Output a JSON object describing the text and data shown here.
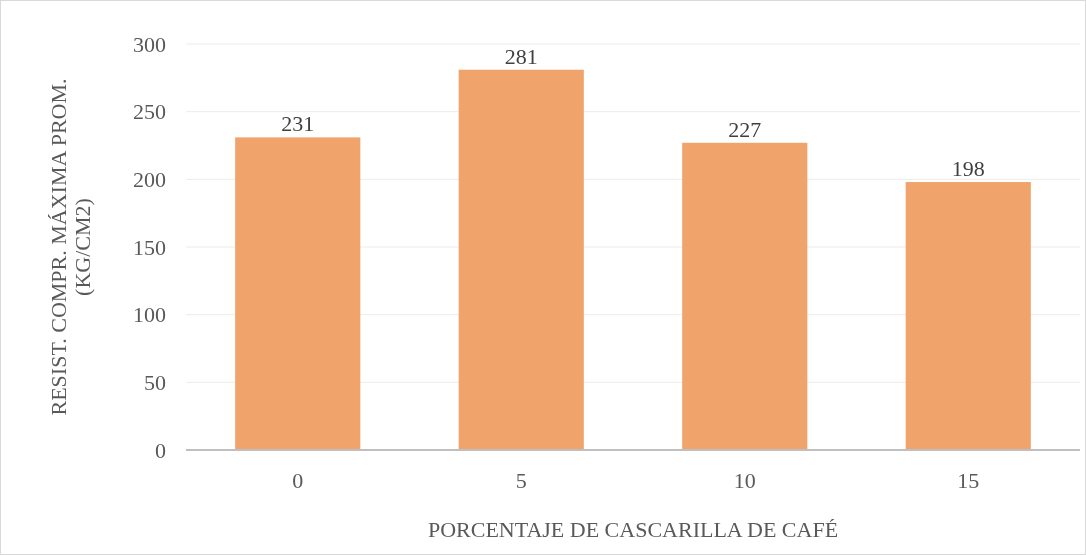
{
  "chart_data": {
    "type": "bar",
    "xlabel": "PORCENTAJE DE CASCARILLA DE CAFÉ",
    "ylabel": "RESIST. COMPR. MÁXIMA PROM. (KG/CM2)",
    "categories": [
      "0",
      "5",
      "10",
      "15"
    ],
    "values": [
      231,
      281,
      227,
      198
    ],
    "color": "#f0a46c",
    "ylim": [
      0,
      300
    ],
    "yticks": [
      0,
      50,
      100,
      150,
      200,
      250,
      300
    ],
    "grid": "y",
    "data_labels": true
  }
}
